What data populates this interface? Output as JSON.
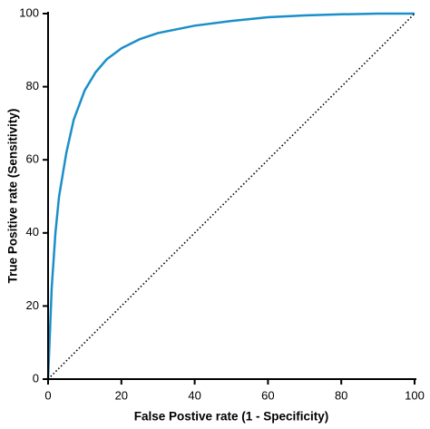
{
  "chart_data": {
    "type": "line",
    "x_label": "False Postive rate (1 - Specificity)",
    "y_label": "True Positive rate (Sensitivity)",
    "xlim": [
      0,
      100
    ],
    "ylim": [
      0,
      100
    ],
    "xticks": [
      0,
      20,
      40,
      60,
      80,
      100
    ],
    "yticks": [
      0,
      20,
      40,
      60,
      80,
      100
    ],
    "series": [
      {
        "color": "#1a8fc9",
        "style": "solid",
        "x": [
          0,
          1,
          2,
          3,
          5,
          7,
          10,
          13,
          16,
          20,
          25,
          30,
          40,
          50,
          60,
          70,
          80,
          90,
          100
        ],
        "values": [
          0,
          25,
          40,
          50,
          62,
          71,
          79,
          84,
          87.5,
          90.5,
          93,
          94.7,
          96.7,
          98,
          99,
          99.5,
          99.8,
          100,
          100
        ]
      },
      {
        "color": "#000000",
        "style": "dotted",
        "x": [
          0,
          100
        ],
        "values": [
          0,
          100
        ]
      }
    ]
  }
}
